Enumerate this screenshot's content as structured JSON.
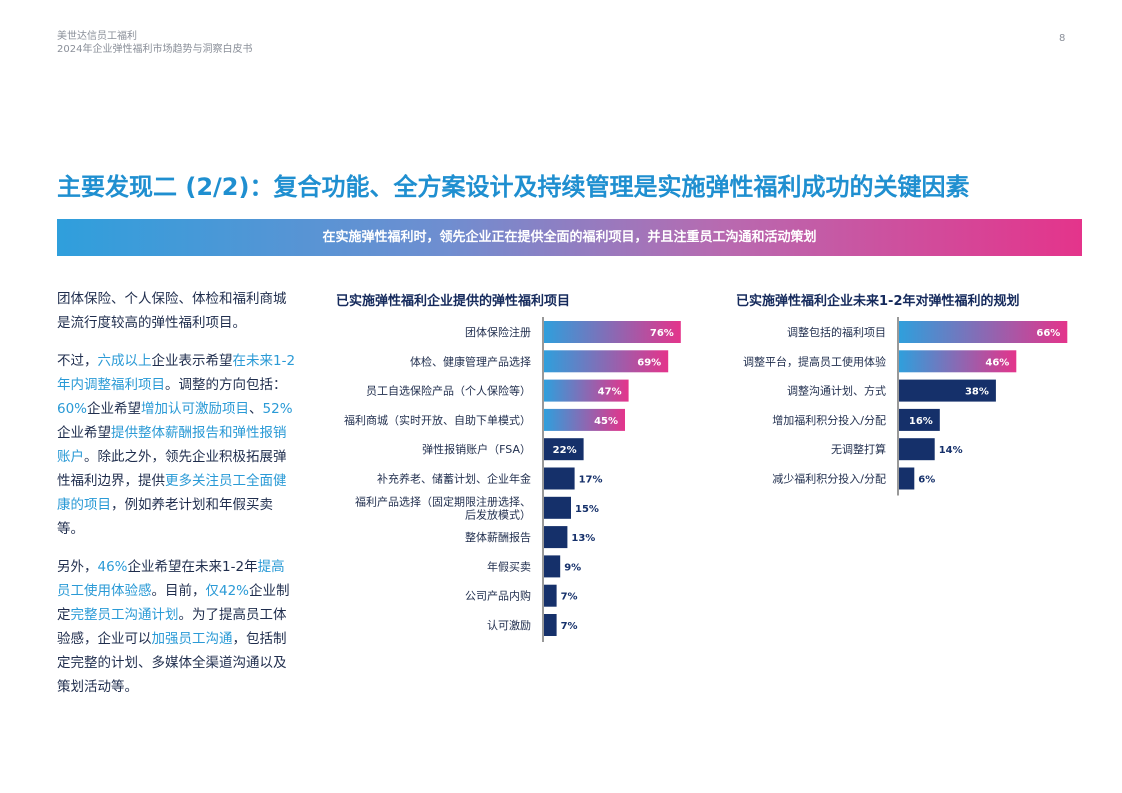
{
  "header": {
    "line1": "美世达信员工福利",
    "line2": "2024年企业弹性福利市场趋势与洞察白皮书",
    "page": "8"
  },
  "title": "主要发现二 (2/2)：复合功能、全方案设计及持续管理是实施弹性福利成功的关键因素",
  "banner": "在实施弹性福利时，领先企业正在提供全面的福利项目，并且注重员工沟通和活动策划",
  "intro": {
    "p1": "团体保险、个人保险、体检和福利商城是流行度较高的弹性福利项目。",
    "p2": [
      {
        "t": "不过，",
        "hl": false
      },
      {
        "t": "六成以上",
        "hl": true
      },
      {
        "t": "企业表示希望",
        "hl": false
      },
      {
        "t": "在未来1-2年内调整福利项目",
        "hl": true
      },
      {
        "t": "。调整的方向包括：",
        "hl": false
      },
      {
        "t": "60%",
        "hl": true
      },
      {
        "t": "企业希望",
        "hl": false
      },
      {
        "t": "增加认可激励项目",
        "hl": true
      },
      {
        "t": "、",
        "hl": false
      },
      {
        "t": "52%",
        "hl": true
      },
      {
        "t": "企业希望",
        "hl": false
      },
      {
        "t": "提供整体薪酬报告和弹性报销账户",
        "hl": true
      },
      {
        "t": "。除此之外，领先企业积极拓展弹性福利边界，提供",
        "hl": false
      },
      {
        "t": "更多关注员工全面健康的项目",
        "hl": true
      },
      {
        "t": "，例如养老计划和年假买卖等。",
        "hl": false
      }
    ],
    "p3": [
      {
        "t": "另外，",
        "hl": false
      },
      {
        "t": "46%",
        "hl": true
      },
      {
        "t": "企业希望在未来1-2年",
        "hl": false
      },
      {
        "t": "提高员工使用体验感",
        "hl": true
      },
      {
        "t": "。目前，",
        "hl": false
      },
      {
        "t": "仅42%",
        "hl": true
      },
      {
        "t": "企业制定",
        "hl": false
      },
      {
        "t": "完整员工沟通计划",
        "hl": true
      },
      {
        "t": "。为了提高员工体验感，企业可以",
        "hl": false
      },
      {
        "t": "加强员工沟通",
        "hl": true
      },
      {
        "t": "，包括制定完整的计划、多媒体全渠道沟通以及策划活动等。",
        "hl": false
      }
    ]
  },
  "colors": {
    "navy": "#15306a",
    "grad_start": "#2f9fdc",
    "grad_end": "#e4348b",
    "accent_blue": "#2a9ad6"
  },
  "chart_data": [
    {
      "type": "bar",
      "orientation": "horizontal",
      "title": "已实施弹性福利企业提供的弹性福利项目",
      "categories": [
        "团体保险注册",
        "体检、健康管理产品选择",
        "员工自选保险产品（个人保险等）",
        "福利商城（实时开放、自助下单模式）",
        "弹性报销账户（FSA）",
        "补充养老、储蓄计划、企业年金",
        "福利产品选择（固定期限注册选择、\n后发放模式）",
        "整体薪酬报告",
        "年假买卖",
        "公司产品内购",
        "认可激励"
      ],
      "values": [
        76,
        69,
        47,
        45,
        22,
        17,
        15,
        13,
        9,
        7,
        7
      ],
      "value_labels": [
        "76%",
        "69%",
        "47%",
        "45%",
        "22%",
        "17%",
        "15%",
        "13%",
        "9%",
        "7%",
        "7%"
      ],
      "highlighted_count": 4,
      "xlim": [
        0,
        100
      ]
    },
    {
      "type": "bar",
      "orientation": "horizontal",
      "title": "已实施弹性福利企业未来1-2年对弹性福利的规划",
      "categories": [
        "调整包括的福利项目",
        "调整平台，提高员工使用体验",
        "调整沟通计划、方式",
        "增加福利积分投入/分配",
        "无调整打算",
        "减少福利积分投入/分配"
      ],
      "values": [
        66,
        46,
        38,
        16,
        14,
        6
      ],
      "value_labels": [
        "66%",
        "46%",
        "38%",
        "16%",
        "14%",
        "6%"
      ],
      "highlighted_count": 2,
      "xlim": [
        0,
        100
      ]
    }
  ]
}
